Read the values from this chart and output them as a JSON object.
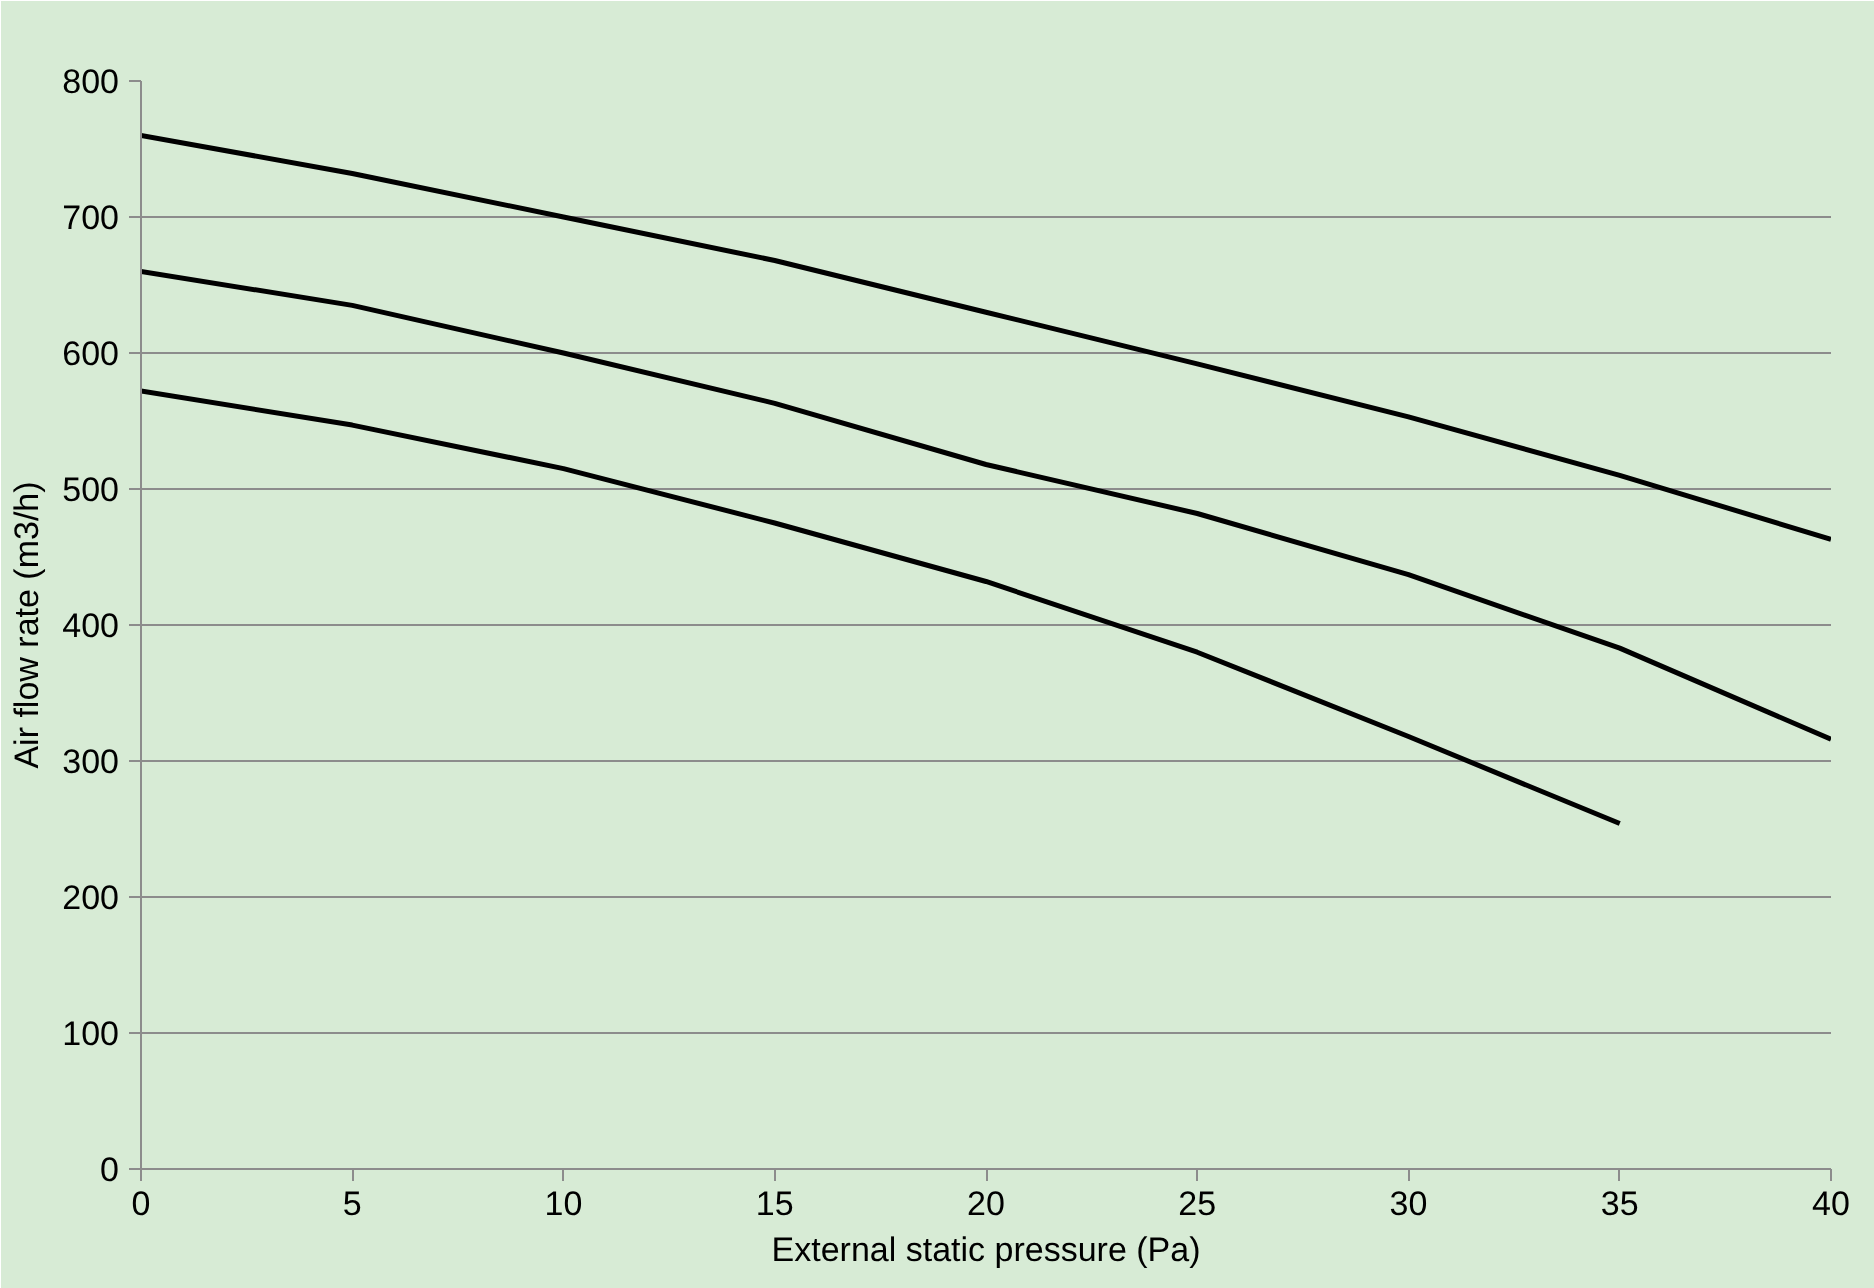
{
  "chart_data": {
    "type": "line",
    "xlabel": "External static pressure (Pa)",
    "ylabel": "Air flow rate (m3/h)",
    "xlim": [
      0,
      40
    ],
    "xticks": [
      0,
      5,
      10,
      15,
      20,
      25,
      30,
      35,
      40
    ],
    "ylim": [
      0,
      800
    ],
    "yticks": [
      0,
      100,
      200,
      300,
      400,
      500,
      600,
      700,
      800
    ],
    "grid": "y",
    "marker": "none",
    "line_style": "solid",
    "series": [
      {
        "color": "#000000",
        "x": [
          0,
          5,
          10,
          15,
          20,
          25,
          30,
          35,
          40
        ],
        "values": [
          760,
          732,
          700,
          668,
          630,
          592,
          553,
          510,
          463
        ]
      },
      {
        "color": "#000000",
        "x": [
          0,
          5,
          10,
          15,
          20,
          25,
          30,
          35,
          40
        ],
        "values": [
          660,
          635,
          600,
          563,
          518,
          482,
          437,
          383,
          316
        ]
      },
      {
        "color": "#000000",
        "x": [
          0,
          5,
          10,
          15,
          20,
          25,
          30,
          35
        ],
        "values": [
          572,
          547,
          515,
          475,
          432,
          380,
          318,
          254
        ]
      }
    ]
  }
}
